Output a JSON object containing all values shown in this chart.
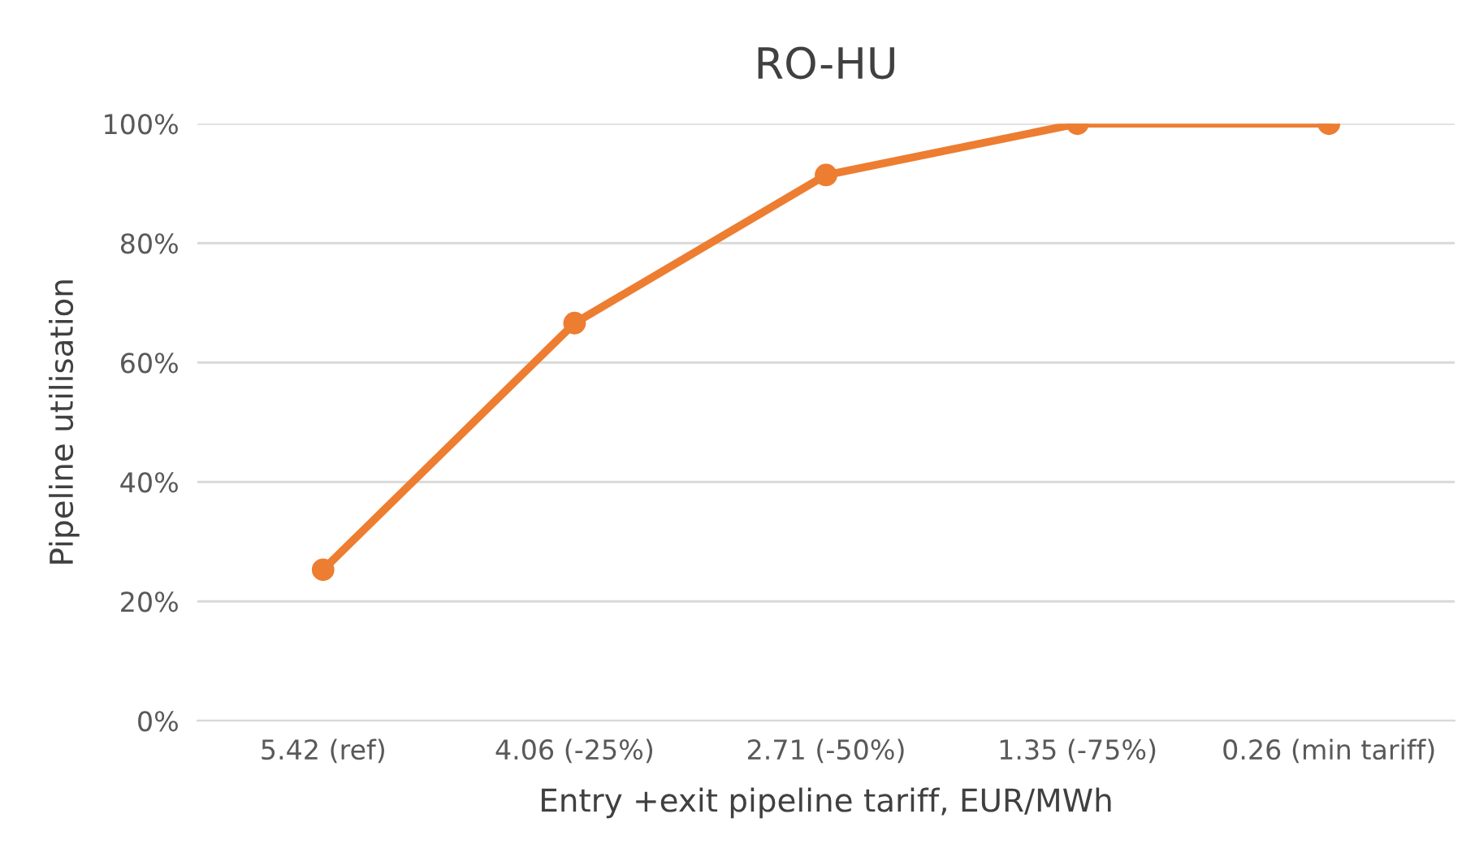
{
  "chart_data": {
    "type": "line",
    "title": "RO-HU",
    "xlabel": "Entry +exit pipeline tariff, EUR/MWh",
    "ylabel": "Pipeline utilisation",
    "categories": [
      "5.42 (ref)",
      "4.06 (-25%)",
      "2.71 (-50%)",
      "1.35 (-75%)",
      "0.26 (min tariff)"
    ],
    "series": [
      {
        "color": "#ed7d31",
        "values": [
          25.3,
          66.6,
          91.4,
          100,
          100
        ]
      }
    ],
    "ylim": [
      0,
      100
    ],
    "yticks": [
      {
        "value": 0,
        "label": "0%"
      },
      {
        "value": 20,
        "label": "20%"
      },
      {
        "value": 40,
        "label": "40%"
      },
      {
        "value": 60,
        "label": "60%"
      },
      {
        "value": 80,
        "label": "80%"
      },
      {
        "value": 100,
        "label": "100%"
      }
    ],
    "grid": "y",
    "marker": "circle",
    "line_style": "solid",
    "legend": false
  }
}
